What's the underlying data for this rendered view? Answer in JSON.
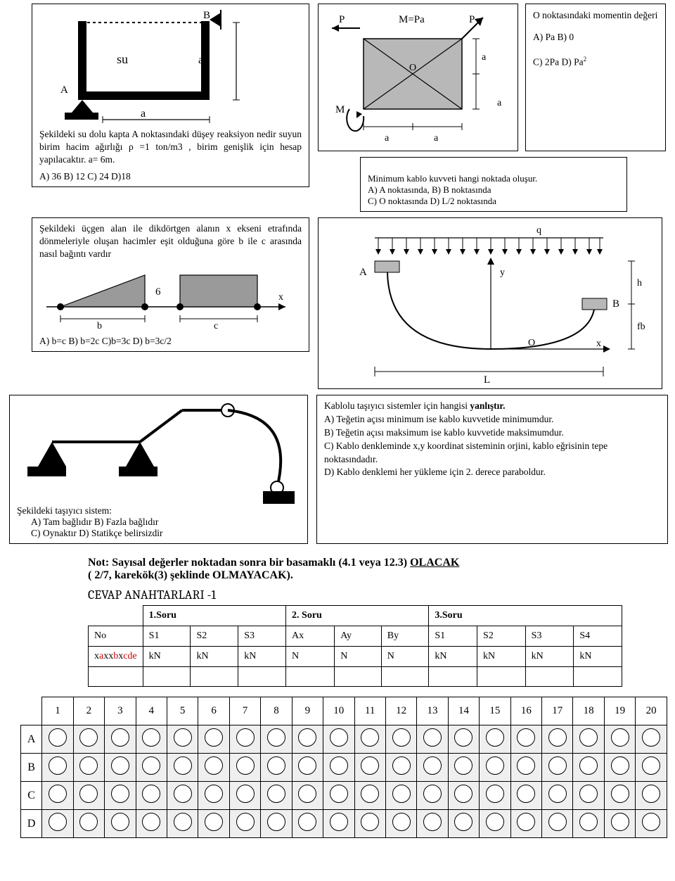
{
  "q1": {
    "fig": {
      "A": "A",
      "B": "B",
      "su": "su",
      "a_label": "a"
    },
    "text": "Şekildeki su dolu kapta A noktasındaki düşey reaksiyon nedir suyun birim hacim ağırlığı ρ =1 ton/m3 , birim genişlik için hesap yapılacaktır.  a= 6m.",
    "answers": "A) 36    B) 12    C) 24    D)18"
  },
  "q2": {
    "labels": {
      "P1": "P",
      "P2": "P",
      "Mpa": "M=Pa",
      "O": "O",
      "M": "M",
      "a": "a"
    },
    "side_title": "O noktasındaki momentin değeri",
    "side_opts": [
      "A) Pa  B) 0",
      "C) 2Pa  D) Pa"
    ],
    "sup2": "2",
    "text": "Minimum kablo kuvveti hangi noktada oluşur.\nA) A noktasında,  B) B noktasında\nC) O noktasında           D) L/2  noktasında"
  },
  "q3": {
    "text": "Şekildeki üçgen alan ile dikdörtgen alanın x ekseni etrafında dönmeleriyle oluşan hacimler eşit olduğuna göre b ile c arasında nasıl bağıntı vardır",
    "labels": {
      "six": "6",
      "b": "b",
      "c": "c",
      "x": "x"
    },
    "answers": "A) b=c   B) b=2c  C)b=3c   D) b=3c/2"
  },
  "q4": {
    "labels": {
      "q": "q",
      "A": "A",
      "B": "B",
      "y": "y",
      "O": "O",
      "x": "x",
      "h": "h",
      "fb": "fb",
      "L": "L"
    }
  },
  "q5": {
    "title": "Şekildeki taşıyıcı sistem:",
    "opts": "A) Tam bağlıdır  B) Fazla bağlıdır\nC) Oynaktır D) Statikçe belirsizdir"
  },
  "q6": {
    "lead": "Kablolu taşıyıcı sistemler için hangisi ",
    "bold": "yanlıştır.",
    "a": "A) Teğetin açısı minimum ise kablo kuvvetide minimumdur.",
    "b": "B) Teğetin açısı maksimum ise kablo kuvvetide maksimumdur.",
    "c": "C) Kablo denkleminde x,y koordinat sisteminin orjini, kablo eğrisinin tepe noktasındadır.",
    "d": "D) Kablo denklemi her yükleme için 2. derece paraboldur."
  },
  "note": {
    "line1a": "Not: Sayısal değerler  noktadan sonra  bir basamaklı (4.1 veya 12.3) ",
    "line1b": "OLACAK",
    "line2": "( 2/7,  karekök(3) şeklinde OLMAYACAK)."
  },
  "section_heading": "CEVAP ANAHTARLARI    -1",
  "table1": {
    "header_sorular": [
      "1.Soru",
      "2. Soru",
      "3.Soru"
    ],
    "row_labels": [
      "No",
      "S1",
      "S2",
      "S3",
      "Ax",
      "Ay",
      "By",
      "S1",
      "S2",
      "S3",
      "S4"
    ],
    "id_prefix": "x",
    "id_red1": "a",
    "id_mid": "xx",
    "id_red2": "b",
    "id_mid2": "x",
    "id_red3": "cde",
    "units": [
      "kN",
      "kN",
      "kN",
      "N",
      "N",
      "N",
      "kN",
      "kN",
      "kN",
      "kN"
    ]
  },
  "bubbles": {
    "cols": 20,
    "row_heads": [
      "A",
      "B",
      "C",
      "D"
    ]
  },
  "colors": {
    "gray_fill": "#b8b8b8",
    "light_gray_fill": "#d0d0d0",
    "black": "#000000"
  }
}
